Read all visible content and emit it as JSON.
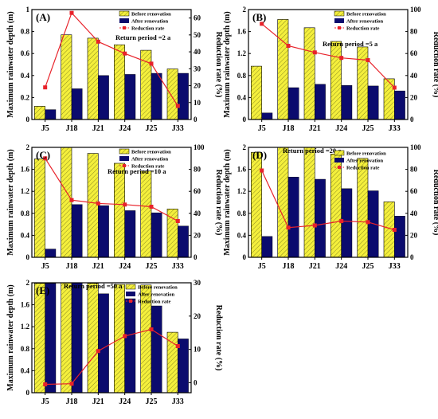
{
  "chart_data": [
    {
      "type": "bar",
      "panel_label": "(A)",
      "annotation": "Return period =2 a",
      "categories": [
        "J5",
        "J18",
        "J21",
        "J24",
        "J25",
        "J33"
      ],
      "ylabel": "Maximum rainwater depth (m)",
      "y2label": "Reduction rate (%)",
      "ylim": [
        0,
        1.0
      ],
      "yticks": [
        0,
        0.2,
        0.4,
        0.6,
        0.8,
        1.0
      ],
      "y2lim": [
        0,
        65
      ],
      "y2ticks": [
        0,
        10,
        20,
        30,
        40,
        50,
        60
      ],
      "series": [
        {
          "name": "Before renovation",
          "kind": "bar",
          "values": [
            0.12,
            0.77,
            0.74,
            0.68,
            0.63,
            0.46
          ]
        },
        {
          "name": "After renovation",
          "kind": "bar",
          "values": [
            0.09,
            0.28,
            0.4,
            0.41,
            0.42,
            0.42
          ]
        },
        {
          "name": "Reduction rate",
          "kind": "line",
          "axis": "right",
          "values": [
            19,
            63,
            46,
            39,
            33,
            8
          ]
        }
      ],
      "legend_position": "top-right"
    },
    {
      "type": "bar",
      "panel_label": "(B)",
      "annotation": "Return period =5 a",
      "categories": [
        "J5",
        "J18",
        "J21",
        "J24",
        "J25",
        "J33"
      ],
      "ylabel": "Maximum rainwater depth (m)",
      "y2label": "Reduction rate (%)",
      "ylim": [
        0,
        2.0
      ],
      "yticks": [
        0,
        0.4,
        0.8,
        1.2,
        1.6,
        2.0
      ],
      "y2lim": [
        0,
        100
      ],
      "y2ticks": [
        0,
        20,
        40,
        60,
        80,
        100
      ],
      "series": [
        {
          "name": "Before renovation",
          "kind": "bar",
          "values": [
            0.97,
            1.82,
            1.67,
            1.42,
            1.32,
            0.74
          ]
        },
        {
          "name": "After renovation",
          "kind": "bar",
          "values": [
            0.12,
            0.58,
            0.64,
            0.62,
            0.61,
            0.52
          ]
        },
        {
          "name": "Reduction rate",
          "kind": "line",
          "axis": "right",
          "values": [
            87,
            67,
            61,
            56,
            54,
            29
          ]
        }
      ],
      "legend_position": "top-right"
    },
    {
      "type": "bar",
      "panel_label": "(C)",
      "annotation": "Return period =10 a",
      "categories": [
        "J5",
        "J18",
        "J21",
        "J24",
        "J25",
        "J33"
      ],
      "ylabel": "Maximum rainwater depth (m)",
      "y2label": "Reduction rate (%)",
      "ylim": [
        0,
        2.0
      ],
      "yticks": [
        0,
        0.4,
        0.8,
        1.2,
        1.6,
        2.0
      ],
      "y2lim": [
        0,
        100
      ],
      "y2ticks": [
        0,
        20,
        40,
        60,
        80,
        100
      ],
      "series": [
        {
          "name": "Before renovation",
          "kind": "bar",
          "values": [
            1.79,
            2.0,
            1.89,
            1.71,
            1.57,
            0.88
          ]
        },
        {
          "name": "After renovation",
          "kind": "bar",
          "values": [
            0.15,
            0.96,
            0.94,
            0.85,
            0.81,
            0.57
          ]
        },
        {
          "name": "Reduction rate",
          "kind": "line",
          "axis": "right",
          "values": [
            90,
            52,
            49,
            48,
            46,
            33
          ]
        }
      ],
      "legend_position": "top-right"
    },
    {
      "type": "bar",
      "panel_label": "(D)",
      "annotation": "Return period =20 a",
      "categories": [
        "J5",
        "J18",
        "J21",
        "J24",
        "J25",
        "J33"
      ],
      "ylabel": "Maximum rainwater depth (m)",
      "y2label": "Reduction rate (%)",
      "ylim": [
        0,
        2.0
      ],
      "yticks": [
        0,
        0.4,
        0.8,
        1.2,
        1.6,
        2.0
      ],
      "y2lim": [
        0,
        100
      ],
      "y2ticks": [
        0,
        20,
        40,
        60,
        80,
        100
      ],
      "series": [
        {
          "name": "Before renovation",
          "kind": "bar",
          "values": [
            1.91,
            2.0,
            2.0,
            1.88,
            1.8,
            1.01
          ]
        },
        {
          "name": "After renovation",
          "kind": "bar",
          "values": [
            0.38,
            1.46,
            1.42,
            1.25,
            1.21,
            0.75
          ]
        },
        {
          "name": "Reduction rate",
          "kind": "line",
          "axis": "right",
          "values": [
            79,
            27,
            29,
            33,
            32,
            25
          ]
        }
      ],
      "legend_position": "top-right"
    },
    {
      "type": "bar",
      "panel_label": "(E)",
      "annotation": "Return period =50 a",
      "categories": [
        "J5",
        "J18",
        "J21",
        "J24",
        "J25",
        "J33"
      ],
      "ylabel": "Maximum rainwater depth (m)",
      "y2label": "Reduction rate (%)",
      "ylim": [
        0,
        2.0
      ],
      "yticks": [
        0,
        0.4,
        0.8,
        1.2,
        1.6,
        2.0
      ],
      "y2lim": [
        -3,
        30
      ],
      "y2ticks": [
        0,
        10,
        20,
        30
      ],
      "series": [
        {
          "name": "Before renovation",
          "kind": "bar",
          "values": [
            1.99,
            2.0,
            1.99,
            1.97,
            1.96,
            1.1
          ]
        },
        {
          "name": "After renovation",
          "kind": "bar",
          "values": [
            1.99,
            2.0,
            1.8,
            1.71,
            1.58,
            0.98
          ]
        },
        {
          "name": "Reduction rate",
          "kind": "line",
          "axis": "right",
          "values": [
            -0.5,
            -0.3,
            9.5,
            14,
            16,
            11
          ]
        }
      ],
      "legend_position": "top"
    }
  ],
  "colors": {
    "before": "#f4ef3c",
    "before_hatch": "#8a8a20",
    "after": "#0b0b6e",
    "line": "#e8222a"
  }
}
